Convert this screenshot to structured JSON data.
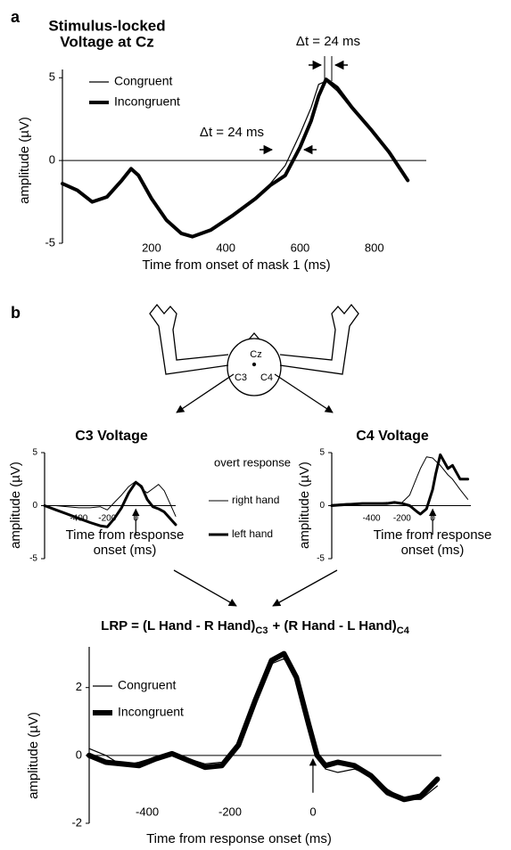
{
  "panels": [
    "a",
    "b"
  ],
  "diagram": {
    "electrodes": [
      "Cz",
      "C3",
      "C4"
    ]
  },
  "formula": [
    "LRP = (L Hand - R Hand)",
    "C3",
    "+ (R Hand - L Hand)",
    "C4"
  ],
  "chart_data": [
    {
      "type": "line",
      "title": [
        "Stimulus-locked",
        "Voltage at Cz"
      ],
      "x_label": [
        "Time from onset of mask 1 (ms)"
      ],
      "y_label": "amplitude (µV)",
      "x": [
        -40,
        0,
        40,
        80,
        120,
        145,
        165,
        200,
        240,
        280,
        310,
        360,
        420,
        480,
        520,
        560,
        600,
        630,
        650,
        670,
        700,
        740,
        790,
        840,
        890
      ],
      "series": [
        {
          "name": "Congruent",
          "color": "#000",
          "width": 1.2,
          "values": [
            -1.4,
            -1.8,
            -2.5,
            -2.2,
            -1.2,
            -0.5,
            -0.9,
            -2.3,
            -3.6,
            -4.4,
            -4.6,
            -4.2,
            -3.3,
            -2.3,
            -1.4,
            -0.3,
            1.6,
            3.2,
            4.6,
            4.8,
            4.2,
            3.1,
            1.9,
            0.6,
            -1.1
          ]
        },
        {
          "name": "Incongruent",
          "color": "#000",
          "width": 4,
          "values": [
            -1.4,
            -1.8,
            -2.5,
            -2.2,
            -1.2,
            -0.5,
            -0.9,
            -2.3,
            -3.6,
            -4.4,
            -4.6,
            -4.2,
            -3.3,
            -2.3,
            -1.5,
            -0.9,
            0.8,
            2.4,
            3.9,
            4.9,
            4.4,
            3.2,
            1.9,
            0.5,
            -1.2
          ]
        }
      ],
      "xlim": [
        -40,
        940
      ],
      "xticks": [
        200,
        400,
        600,
        800
      ],
      "ylim": [
        -5,
        5.5
      ],
      "yticks": [
        -5,
        0,
        5
      ],
      "zero_line": true,
      "annotations": [
        "Δt = 24 ms",
        "Δt = 24 ms"
      ]
    },
    {
      "type": "line",
      "title": "C3 Voltage",
      "x_label": [
        "Time from response",
        "onset (ms)"
      ],
      "y_label": "amplitude (µV)",
      "legend_title": "overt response",
      "x": [
        -640,
        -560,
        -480,
        -400,
        -320,
        -250,
        -200,
        -150,
        -100,
        -50,
        0,
        40,
        80,
        120,
        160,
        200,
        240,
        280
      ],
      "series": [
        {
          "name": "right hand",
          "color": "#000",
          "width": 1,
          "values": [
            0,
            0,
            -0.1,
            -0.2,
            -0.2,
            -0.1,
            -0.4,
            0.3,
            1.0,
            1.8,
            2.3,
            1.6,
            1.2,
            1.6,
            2.0,
            1.4,
            0.2,
            -1.0
          ]
        },
        {
          "name": "left hand",
          "color": "#000",
          "width": 3,
          "values": [
            0,
            -0.4,
            -0.8,
            -1.2,
            -1.6,
            -1.9,
            -2.0,
            -1.2,
            -0.2,
            1.2,
            2.2,
            1.8,
            0.6,
            -0.1,
            -0.3,
            -0.6,
            -1.2,
            -1.8
          ]
        }
      ],
      "xlim": [
        -640,
        280
      ],
      "xticks": [
        -400,
        -200,
        0
      ],
      "ylim": [
        -5,
        5
      ],
      "yticks": [
        -5,
        0,
        5
      ],
      "zero_line": true,
      "onset_arrow": 0
    },
    {
      "type": "line",
      "title": "C4 Voltage",
      "x_label": [
        "Time from response",
        "onset (ms)"
      ],
      "y_label": "amplitude (µV)",
      "x": [
        -660,
        -560,
        -460,
        -360,
        -300,
        -250,
        -200,
        -150,
        -100,
        -80,
        -40,
        0,
        20,
        50,
        100,
        130,
        180,
        230
      ],
      "series": [
        {
          "color": "#000",
          "width": 1,
          "values": [
            0.1,
            0.2,
            0.2,
            0.2,
            0.3,
            0.2,
            0.3,
            1.0,
            2.8,
            3.5,
            4.6,
            4.5,
            4.2,
            3.8,
            2.9,
            2.5,
            1.5,
            0.6
          ]
        },
        {
          "color": "#000",
          "width": 3,
          "values": [
            0,
            0.1,
            0.2,
            0.2,
            0.2,
            0.3,
            0.2,
            0,
            -0.6,
            -0.8,
            -0.3,
            1.5,
            3.0,
            4.8,
            3.5,
            3.8,
            2.5,
            2.5
          ]
        }
      ],
      "xlim": [
        -660,
        250
      ],
      "xticks": [
        -400,
        -200,
        0
      ],
      "ylim": [
        -5,
        5
      ],
      "yticks": [
        -5,
        0,
        5
      ],
      "zero_line": true,
      "onset_arrow": 0
    },
    {
      "type": "line",
      "x_label": [
        "Time from response onset (ms)"
      ],
      "y_label": "amplitude (µV)",
      "x": [
        -540,
        -500,
        -460,
        -420,
        -380,
        -340,
        -300,
        -260,
        -220,
        -180,
        -140,
        -100,
        -70,
        -40,
        -10,
        10,
        30,
        60,
        100,
        140,
        180,
        220,
        260,
        300
      ],
      "series": [
        {
          "name": "Congruent",
          "color": "#000",
          "width": 1.2,
          "values": [
            0.2,
            0,
            -0.3,
            -0.2,
            -0.05,
            0,
            -0.1,
            -0.25,
            -0.2,
            0.4,
            1.7,
            2.7,
            2.85,
            2.3,
            1.1,
            0.1,
            -0.4,
            -0.5,
            -0.4,
            -0.6,
            -1.0,
            -1.3,
            -1.3,
            -0.9
          ]
        },
        {
          "name": "Incongruent",
          "color": "#000",
          "width": 6,
          "values": [
            0,
            -0.2,
            -0.25,
            -0.3,
            -0.1,
            0.05,
            -0.15,
            -0.35,
            -0.3,
            0.3,
            1.6,
            2.8,
            3.0,
            2.3,
            0.9,
            0,
            -0.3,
            -0.2,
            -0.3,
            -0.6,
            -1.1,
            -1.3,
            -1.2,
            -0.7
          ]
        }
      ],
      "xlim": [
        -540,
        310
      ],
      "xticks": [
        -400,
        -200,
        0
      ],
      "ylim": [
        -2,
        3.2
      ],
      "yticks": [
        -2,
        0,
        2
      ],
      "zero_line": true,
      "onset_arrow": 0
    }
  ]
}
